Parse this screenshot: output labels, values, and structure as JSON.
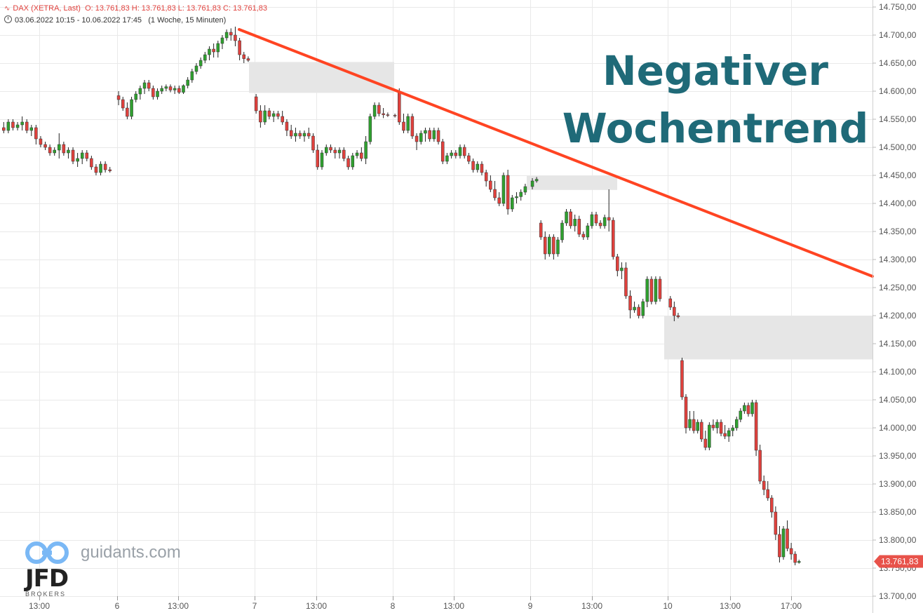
{
  "header": {
    "instrument": "DAX (XETRA, Last)",
    "ohlc": "O: 13.761,83   H: 13.761,83   L: 13.761,83   C: 13.761,83",
    "range": "03.06.2022 10:15 - 10.06.2022 17:45",
    "interval": "(1 Woche, 15 Minuten)"
  },
  "annotation": {
    "line1": "Negativer",
    "line2": "Wochentrend",
    "color": "#1f6a78",
    "trendline_color": "#ff4422"
  },
  "branding": {
    "site": "guidants.com",
    "broker": "JFD",
    "broker_sub": "BROKERS"
  },
  "colors": {
    "up": "#2fa02f",
    "down": "#e0413d",
    "grid": "#e9e9e9",
    "zone": "#e6e6e6"
  },
  "chart_data": {
    "type": "candlestick",
    "ylim": [
      13700,
      14750
    ],
    "y_ticks": [
      "14.750,00",
      "14.700,00",
      "14.650,00",
      "14.600,00",
      "14.550,00",
      "14.500,00",
      "14.450,00",
      "14.400,00",
      "14.350,00",
      "14.300,00",
      "14.250,00",
      "14.200,00",
      "14.150,00",
      "14.100,00",
      "14.050,00",
      "14.000,00",
      "13.950,00",
      "13.900,00",
      "13.850,00",
      "13.800,00",
      "13.750,00",
      "13.700,00"
    ],
    "x_ticks": [
      "13:00",
      "6",
      "13:00",
      "7",
      "13:00",
      "8",
      "13:00",
      "9",
      "13:00",
      "10",
      "13:00",
      "17:00"
    ],
    "last_price": "13.761,83",
    "trendline": {
      "start": {
        "x_label": "6",
        "x_offset": 0.86,
        "y": 14710
      },
      "end": {
        "x_label": "right-edge",
        "y": 14270
      }
    },
    "gap_zones": [
      {
        "from": "7 (start)",
        "to": "8 (start)",
        "y_low": 14597,
        "y_high": 14652
      },
      {
        "from": "9 (early)",
        "to": "9 (14:00)",
        "y_low": 14424,
        "y_high": 14449
      },
      {
        "from": "10 (start)",
        "to": "right-edge",
        "y_low": 14122,
        "y_high": 14200
      }
    ],
    "ohlc": [
      [
        14535,
        14545,
        14525,
        14530
      ],
      [
        14530,
        14550,
        14525,
        14545
      ],
      [
        14545,
        14550,
        14530,
        14535
      ],
      [
        14535,
        14545,
        14530,
        14540
      ],
      [
        14540,
        14555,
        14530,
        14545
      ],
      [
        14545,
        14550,
        14525,
        14530
      ],
      [
        14530,
        14540,
        14520,
        14535
      ],
      [
        14535,
        14540,
        14505,
        14515
      ],
      [
        14515,
        14520,
        14500,
        14505
      ],
      [
        14505,
        14510,
        14495,
        14500
      ],
      [
        14500,
        14505,
        14485,
        14490
      ],
      [
        14490,
        14500,
        14485,
        14495
      ],
      [
        14495,
        14525,
        14480,
        14505
      ],
      [
        14505,
        14510,
        14485,
        14490
      ],
      [
        14490,
        14500,
        14480,
        14495
      ],
      [
        14495,
        14500,
        14470,
        14475
      ],
      [
        14475,
        14490,
        14465,
        14480
      ],
      [
        14480,
        14495,
        14470,
        14490
      ],
      [
        14490,
        14495,
        14475,
        14480
      ],
      [
        14480,
        14485,
        14460,
        14465
      ],
      [
        14465,
        14470,
        14450,
        14455
      ],
      [
        14455,
        14475,
        14450,
        14470
      ],
      [
        14470,
        14475,
        14455,
        14460
      ],
      [
        14460,
        14465,
        14455,
        14458
      ],
      [
        14592,
        14600,
        14575,
        14585
      ],
      [
        14585,
        14590,
        14565,
        14570
      ],
      [
        14570,
        14580,
        14550,
        14555
      ],
      [
        14555,
        14590,
        14550,
        14585
      ],
      [
        14585,
        14600,
        14580,
        14595
      ],
      [
        14595,
        14610,
        14585,
        14605
      ],
      [
        14605,
        14620,
        14595,
        14615
      ],
      [
        14615,
        14620,
        14600,
        14605
      ],
      [
        14605,
        14610,
        14585,
        14590
      ],
      [
        14590,
        14605,
        14585,
        14600
      ],
      [
        14600,
        14610,
        14595,
        14605
      ],
      [
        14605,
        14612,
        14600,
        14608
      ],
      [
        14608,
        14612,
        14598,
        14602
      ],
      [
        14602,
        14610,
        14595,
        14605
      ],
      [
        14605,
        14610,
        14595,
        14598
      ],
      [
        14598,
        14612,
        14595,
        14610
      ],
      [
        14610,
        14625,
        14605,
        14620
      ],
      [
        14620,
        14640,
        14615,
        14635
      ],
      [
        14635,
        14650,
        14630,
        14645
      ],
      [
        14645,
        14660,
        14640,
        14655
      ],
      [
        14655,
        14670,
        14650,
        14665
      ],
      [
        14665,
        14680,
        14655,
        14675
      ],
      [
        14675,
        14685,
        14660,
        14670
      ],
      [
        14670,
        14690,
        14660,
        14685
      ],
      [
        14685,
        14700,
        14675,
        14695
      ],
      [
        14695,
        14710,
        14690,
        14705
      ],
      [
        14705,
        14712,
        14690,
        14700
      ],
      [
        14700,
        14715,
        14680,
        14690
      ],
      [
        14690,
        14695,
        14655,
        14665
      ],
      [
        14665,
        14670,
        14650,
        14658
      ],
      [
        14658,
        14662,
        14652,
        14655
      ],
      [
        14590,
        14595,
        14560,
        14565
      ],
      [
        14565,
        14575,
        14535,
        14545
      ],
      [
        14545,
        14575,
        14540,
        14565
      ],
      [
        14565,
        14570,
        14550,
        14555
      ],
      [
        14555,
        14565,
        14545,
        14560
      ],
      [
        14560,
        14565,
        14550,
        14555
      ],
      [
        14555,
        14565,
        14540,
        14545
      ],
      [
        14545,
        14550,
        14520,
        14530
      ],
      [
        14530,
        14540,
        14515,
        14520
      ],
      [
        14520,
        14535,
        14510,
        14525
      ],
      [
        14525,
        14530,
        14515,
        14520
      ],
      [
        14520,
        14530,
        14510,
        14525
      ],
      [
        14525,
        14535,
        14515,
        14520
      ],
      [
        14520,
        14525,
        14490,
        14495
      ],
      [
        14495,
        14505,
        14460,
        14465
      ],
      [
        14465,
        14495,
        14460,
        14490
      ],
      [
        14490,
        14505,
        14485,
        14500
      ],
      [
        14500,
        14505,
        14490,
        14495
      ],
      [
        14495,
        14500,
        14480,
        14490
      ],
      [
        14490,
        14500,
        14480,
        14495
      ],
      [
        14495,
        14500,
        14475,
        14480
      ],
      [
        14480,
        14485,
        14460,
        14465
      ],
      [
        14465,
        14490,
        14460,
        14485
      ],
      [
        14485,
        14495,
        14480,
        14490
      ],
      [
        14490,
        14500,
        14475,
        14480
      ],
      [
        14480,
        14520,
        14470,
        14510
      ],
      [
        14510,
        14560,
        14505,
        14555
      ],
      [
        14555,
        14580,
        14550,
        14575
      ],
      [
        14575,
        14580,
        14555,
        14560
      ],
      [
        14560,
        14570,
        14552,
        14558
      ],
      [
        14558,
        14562,
        14554,
        14557
      ],
      [
        14557,
        14560,
        14553,
        14556
      ],
      [
        14600,
        14605,
        14540,
        14545
      ],
      [
        14545,
        14560,
        14525,
        14530
      ],
      [
        14530,
        14560,
        14525,
        14555
      ],
      [
        14555,
        14560,
        14515,
        14520
      ],
      [
        14520,
        14525,
        14495,
        14510
      ],
      [
        14510,
        14530,
        14505,
        14525
      ],
      [
        14525,
        14535,
        14510,
        14530
      ],
      [
        14530,
        14535,
        14510,
        14515
      ],
      [
        14515,
        14535,
        14510,
        14530
      ],
      [
        14530,
        14535,
        14505,
        14510
      ],
      [
        14510,
        14515,
        14470,
        14475
      ],
      [
        14475,
        14490,
        14470,
        14485
      ],
      [
        14485,
        14495,
        14480,
        14490
      ],
      [
        14490,
        14495,
        14480,
        14485
      ],
      [
        14485,
        14505,
        14480,
        14500
      ],
      [
        14500,
        14505,
        14480,
        14485
      ],
      [
        14485,
        14490,
        14470,
        14475
      ],
      [
        14475,
        14480,
        14455,
        14460
      ],
      [
        14460,
        14475,
        14455,
        14470
      ],
      [
        14470,
        14475,
        14450,
        14455
      ],
      [
        14455,
        14460,
        14430,
        14440
      ],
      [
        14440,
        14450,
        14420,
        14425
      ],
      [
        14425,
        14440,
        14405,
        14410
      ],
      [
        14410,
        14420,
        14395,
        14400
      ],
      [
        14400,
        14455,
        14395,
        14450
      ],
      [
        14450,
        14460,
        14380,
        14390
      ],
      [
        14390,
        14415,
        14385,
        14410
      ],
      [
        14410,
        14420,
        14400,
        14412
      ],
      [
        14412,
        14425,
        14405,
        14420
      ],
      [
        14420,
        14435,
        14415,
        14430
      ],
      [
        14430,
        14445,
        14425,
        14440
      ],
      [
        14440,
        14447,
        14437,
        14443
      ],
      [
        14365,
        14370,
        14335,
        14340
      ],
      [
        14340,
        14350,
        14300,
        14310
      ],
      [
        14310,
        14345,
        14305,
        14340
      ],
      [
        14340,
        14345,
        14300,
        14310
      ],
      [
        14310,
        14340,
        14305,
        14335
      ],
      [
        14335,
        14370,
        14330,
        14365
      ],
      [
        14365,
        14390,
        14360,
        14385
      ],
      [
        14385,
        14390,
        14355,
        14360
      ],
      [
        14360,
        14380,
        14350,
        14372
      ],
      [
        14372,
        14378,
        14340,
        14345
      ],
      [
        14345,
        14350,
        14335,
        14340
      ],
      [
        14340,
        14365,
        14335,
        14360
      ],
      [
        14360,
        14385,
        14355,
        14380
      ],
      [
        14380,
        14385,
        14360,
        14365
      ],
      [
        14365,
        14370,
        14355,
        14360
      ],
      [
        14360,
        14380,
        14355,
        14375
      ],
      [
        14375,
        14425,
        14350,
        14370
      ],
      [
        14370,
        14375,
        14300,
        14305
      ],
      [
        14305,
        14310,
        14270,
        14280
      ],
      [
        14280,
        14295,
        14265,
        14285
      ],
      [
        14285,
        14295,
        14230,
        14235
      ],
      [
        14235,
        14245,
        14195,
        14210
      ],
      [
        14210,
        14225,
        14205,
        14215
      ],
      [
        14215,
        14220,
        14195,
        14200
      ],
      [
        14200,
        14230,
        14195,
        14225
      ],
      [
        14225,
        14270,
        14215,
        14265
      ],
      [
        14265,
        14270,
        14220,
        14225
      ],
      [
        14225,
        14270,
        14220,
        14265
      ],
      [
        14265,
        14270,
        14225,
        14230
      ],
      [
        14230,
        14235,
        14210,
        14215
      ],
      [
        14215,
        14225,
        14190,
        14200
      ],
      [
        14200,
        14205,
        14195,
        14198
      ],
      [
        14120,
        14125,
        14050,
        14055
      ],
      [
        14055,
        14060,
        13990,
        14000
      ],
      [
        14000,
        14030,
        13995,
        14015
      ],
      [
        14015,
        14030,
        13990,
        13995
      ],
      [
        13995,
        14015,
        13990,
        14010
      ],
      [
        14010,
        14015,
        13975,
        13980
      ],
      [
        13980,
        13995,
        13960,
        13965
      ],
      [
        13965,
        14010,
        13960,
        14005
      ],
      [
        14005,
        14015,
        13995,
        14000
      ],
      [
        14000,
        14015,
        13990,
        14010
      ],
      [
        14010,
        14015,
        13985,
        13990
      ],
      [
        13990,
        14005,
        13980,
        13985
      ],
      [
        13985,
        14000,
        13975,
        13995
      ],
      [
        13995,
        14005,
        13985,
        14000
      ],
      [
        14000,
        14020,
        13995,
        14015
      ],
      [
        14015,
        14035,
        14010,
        14030
      ],
      [
        14030,
        14045,
        14025,
        14040
      ],
      [
        14040,
        14045,
        14020,
        14025
      ],
      [
        14025,
        14050,
        14020,
        14045
      ],
      [
        14045,
        14050,
        13950,
        13960
      ],
      [
        13960,
        13970,
        13900,
        13905
      ],
      [
        13905,
        13915,
        13880,
        13890
      ],
      [
        13890,
        13905,
        13870,
        13875
      ],
      [
        13875,
        13880,
        13840,
        13850
      ],
      [
        13850,
        13860,
        13800,
        13810
      ],
      [
        13810,
        13825,
        13760,
        13770
      ],
      [
        13770,
        13825,
        13765,
        13820
      ],
      [
        13820,
        13835,
        13780,
        13785
      ],
      [
        13785,
        13795,
        13765,
        13775
      ],
      [
        13775,
        13780,
        13755,
        13760
      ],
      [
        13760,
        13765,
        13758,
        13762
      ]
    ]
  }
}
